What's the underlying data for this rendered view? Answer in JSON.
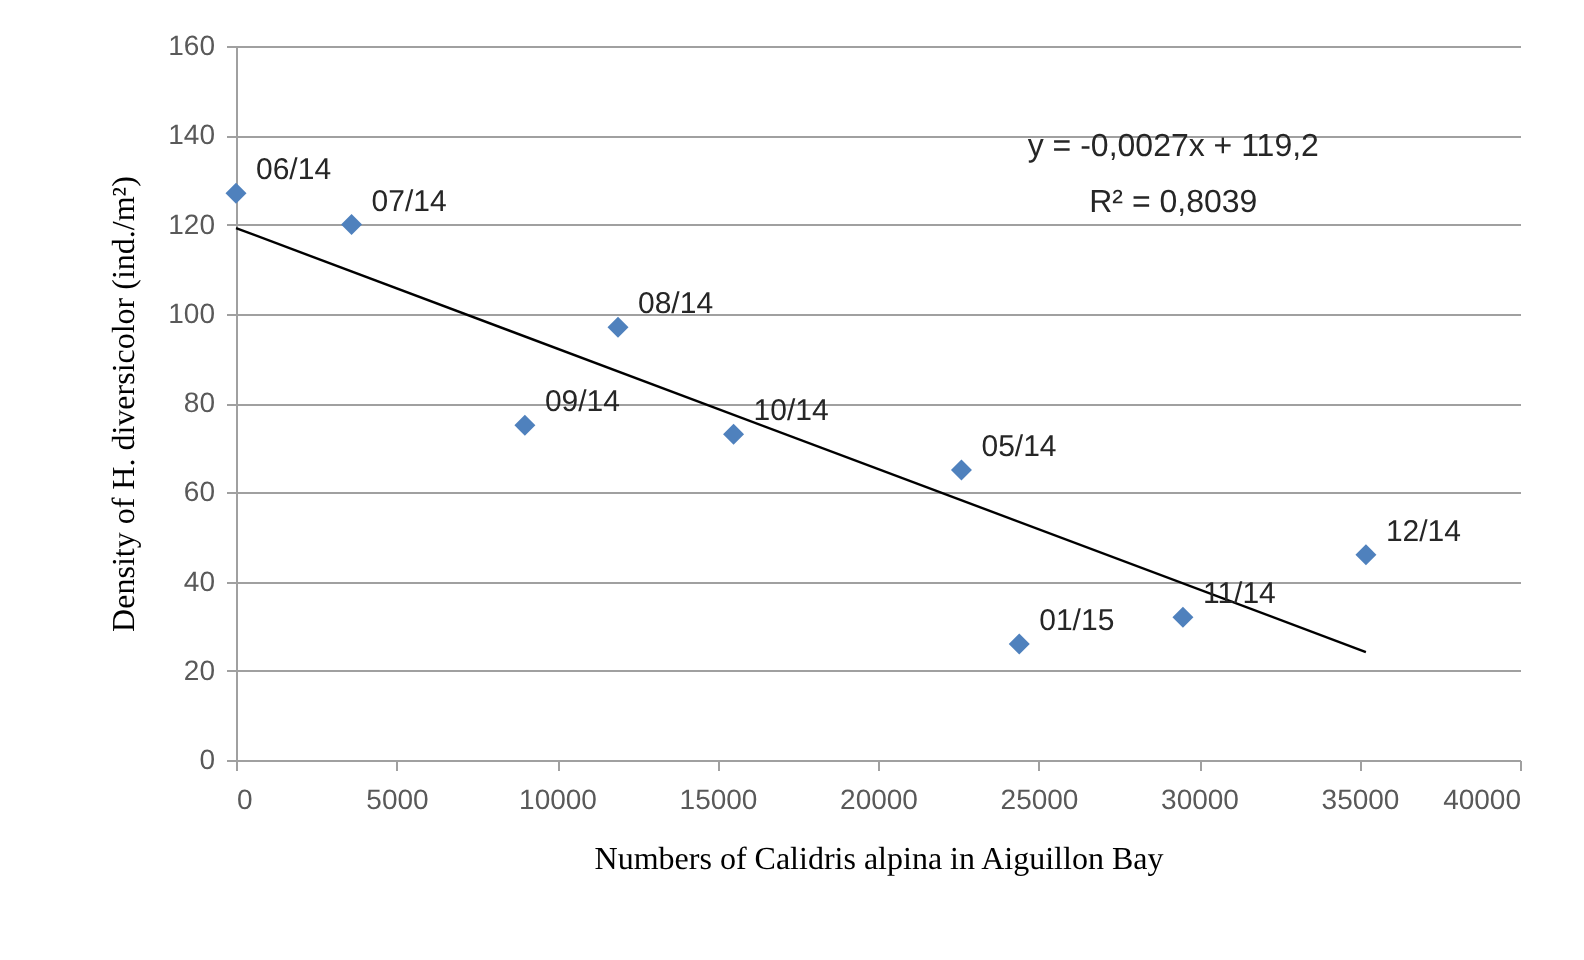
{
  "chart_data": {
    "type": "scatter",
    "xlabel": "Numbers of Calidris alpina in Aiguillon Bay",
    "ylabel": "Density of H. diversicolor (ind./m²)",
    "xlim": [
      0,
      40000
    ],
    "xticks": [
      0,
      5000,
      10000,
      15000,
      20000,
      25000,
      30000,
      35000,
      40000
    ],
    "ylim": [
      0,
      160
    ],
    "yticks": [
      0,
      20,
      40,
      60,
      80,
      100,
      120,
      140,
      160
    ],
    "grid": "y",
    "marker": "diamond",
    "series": [
      {
        "color": "#4f81bd",
        "x": [
          0,
          3600,
          11900,
          9000,
          15500,
          22600,
          24400,
          29500,
          35200
        ],
        "values": [
          127,
          120,
          97,
          75,
          73,
          65,
          26,
          32,
          46
        ]
      },
      {
        "type": "line",
        "color": "#000000",
        "marker": "none",
        "x": [
          0,
          35200
        ],
        "values": [
          119.2,
          24.2
        ]
      }
    ],
    "annotations": [
      {
        "text": "06/14",
        "x": 0,
        "y": 127
      },
      {
        "text": "07/14",
        "x": 3600,
        "y": 120
      },
      {
        "text": "08/14",
        "x": 11900,
        "y": 97
      },
      {
        "text": "09/14",
        "x": 9000,
        "y": 75
      },
      {
        "text": "10/14",
        "x": 15500,
        "y": 73
      },
      {
        "text": "05/14",
        "x": 22600,
        "y": 65
      },
      {
        "text": "01/15",
        "x": 24400,
        "y": 26
      },
      {
        "text": "11/14",
        "x": 29500,
        "y": 32
      },
      {
        "text": "12/14",
        "x": 35200,
        "y": 46
      },
      "y = -0,0027x + 119,2",
      "R² = 0,8039"
    ]
  }
}
